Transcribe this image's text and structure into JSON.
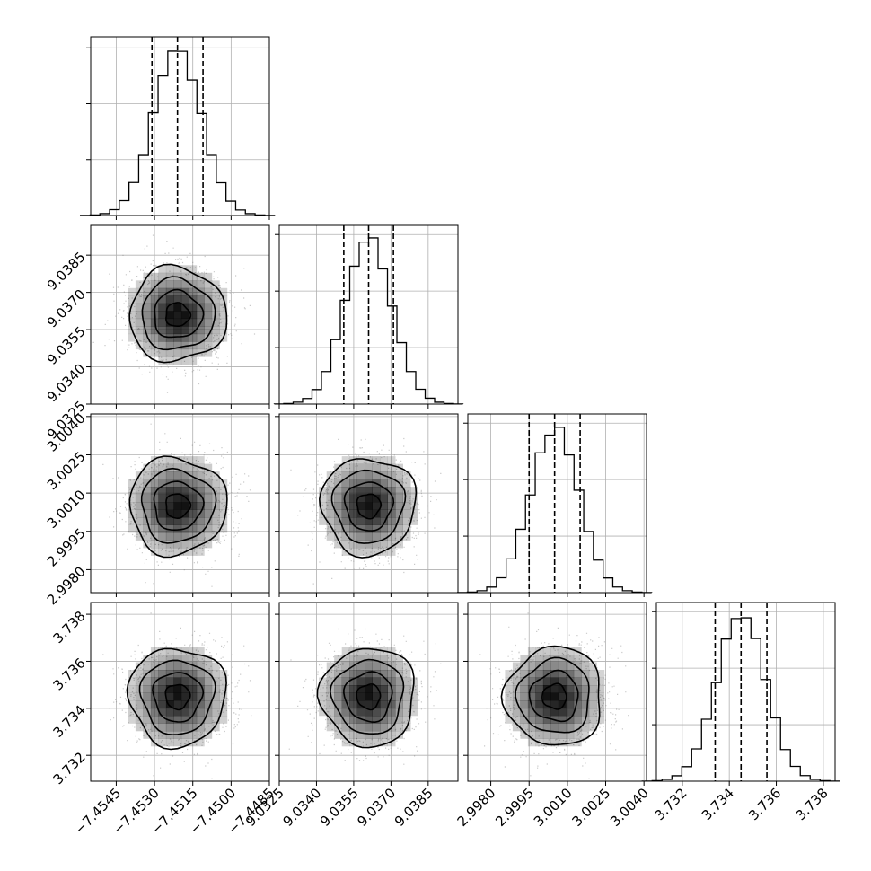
{
  "chart_data": {
    "type": "corner",
    "grid": true,
    "parameters": [
      {
        "ticks": [
          -7.4545,
          -7.453,
          -7.4515,
          -7.45,
          -7.4485
        ],
        "tick_labels": [
          "−7.4545",
          "−7.4530",
          "−7.4515",
          "−7.4500",
          "−7.4485"
        ],
        "range": [
          -7.4555,
          -7.4485
        ],
        "center": -7.4521,
        "sigma": 0.00095,
        "quantiles": [
          -7.4531,
          -7.4521,
          -7.4511
        ]
      },
      {
        "ticks": [
          9.0325,
          9.034,
          9.0355,
          9.037,
          9.0385
        ],
        "tick_labels": [
          "9.0325",
          "9.0340",
          "9.0355",
          "9.0370",
          "9.0385"
        ],
        "range": [
          9.0325,
          9.0397
        ],
        "center": 9.0361,
        "sigma": 0.00095,
        "quantiles": [
          9.0351,
          9.0361,
          9.0371
        ]
      },
      {
        "ticks": [
          2.998,
          2.9995,
          3.001,
          3.0025,
          3.004
        ],
        "tick_labels": [
          "2.9980",
          "2.9995",
          "3.0010",
          "3.0025",
          "3.0040"
        ],
        "range": [
          2.9971,
          3.0041
        ],
        "center": 3.0005,
        "sigma": 0.00095,
        "quantiles": [
          2.9995,
          3.0005,
          3.0015
        ]
      },
      {
        "ticks": [
          3.732,
          3.734,
          3.736,
          3.738
        ],
        "tick_labels": [
          "3.732",
          "3.734",
          "3.736",
          "3.738"
        ],
        "range": [
          3.7309,
          3.7385
        ],
        "center": 3.7345,
        "sigma": 0.00105,
        "quantiles": [
          3.7334,
          3.7345,
          3.7356
        ]
      }
    ],
    "histogram_bins": 20,
    "histogram_peak_fraction": [
      0.92,
      0.93,
      0.93,
      0.93
    ],
    "contour_levels_sigma": [
      0.5,
      1.0,
      1.5,
      2.0
    ],
    "colors": {
      "line": "#000000",
      "grid": "#b0b0b0",
      "density": "#000000",
      "scatter": "#888888"
    }
  }
}
